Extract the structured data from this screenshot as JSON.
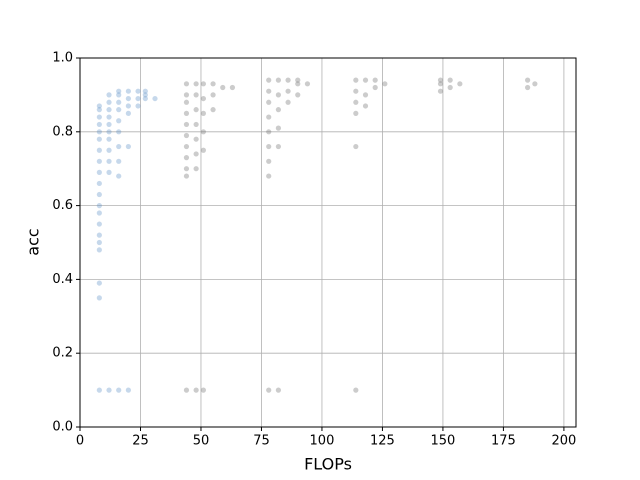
{
  "chart_data": {
    "type": "scatter",
    "xlabel": "FLOPs",
    "ylabel": "acc",
    "xlim": [
      0,
      205
    ],
    "ylim": [
      0,
      1
    ],
    "xticks": [
      0,
      25,
      50,
      75,
      100,
      125,
      150,
      175,
      200
    ],
    "yticks": [
      {
        "value": 0,
        "label": "0.0"
      },
      0.2,
      0.4,
      0.6,
      0.8,
      {
        "value": 1,
        "label": "1.0"
      }
    ],
    "grid": true,
    "alpha": 0.35,
    "series": [
      {
        "color": "#5b8fc7",
        "x": [
          8,
          8,
          8,
          8,
          8,
          8,
          8,
          8,
          8,
          8,
          8,
          8,
          8,
          8,
          8,
          8,
          8,
          8,
          8,
          8,
          12,
          12,
          12,
          12,
          12,
          12,
          12,
          12,
          12,
          12,
          12,
          16,
          16,
          16,
          16,
          16,
          16,
          16,
          16,
          16,
          16,
          20,
          20,
          20,
          20,
          20,
          20,
          24,
          24,
          24,
          27,
          27,
          27,
          31
        ],
        "y": [
          0.1,
          0.35,
          0.39,
          0.48,
          0.5,
          0.52,
          0.55,
          0.58,
          0.6,
          0.63,
          0.66,
          0.69,
          0.72,
          0.75,
          0.78,
          0.8,
          0.82,
          0.84,
          0.86,
          0.87,
          0.1,
          0.69,
          0.72,
          0.75,
          0.78,
          0.8,
          0.82,
          0.84,
          0.86,
          0.88,
          0.9,
          0.1,
          0.68,
          0.72,
          0.76,
          0.8,
          0.83,
          0.86,
          0.88,
          0.9,
          0.91,
          0.1,
          0.76,
          0.85,
          0.87,
          0.89,
          0.91,
          0.87,
          0.89,
          0.91,
          0.89,
          0.9,
          0.91,
          0.89
        ]
      },
      {
        "color": "#6e6e6e",
        "x": [
          44,
          44,
          44,
          44,
          44,
          44,
          44,
          44,
          44,
          44,
          44,
          48,
          48,
          48,
          48,
          48,
          48,
          48,
          48,
          51,
          51,
          51,
          51,
          51,
          51,
          55,
          55,
          55,
          59,
          63,
          78,
          78,
          78,
          78,
          78,
          78,
          78,
          78,
          78,
          82,
          82,
          82,
          82,
          82,
          82,
          86,
          86,
          86,
          90,
          90,
          90,
          94,
          114,
          114,
          114,
          114,
          114,
          114,
          118,
          118,
          118,
          122,
          122,
          126,
          149,
          149,
          149,
          153,
          153,
          157,
          185,
          185,
          188
        ],
        "y": [
          0.1,
          0.68,
          0.7,
          0.73,
          0.76,
          0.79,
          0.82,
          0.85,
          0.88,
          0.9,
          0.93,
          0.1,
          0.7,
          0.74,
          0.78,
          0.82,
          0.86,
          0.9,
          0.93,
          0.1,
          0.75,
          0.8,
          0.85,
          0.89,
          0.93,
          0.86,
          0.9,
          0.93,
          0.92,
          0.92,
          0.1,
          0.68,
          0.72,
          0.76,
          0.8,
          0.84,
          0.88,
          0.91,
          0.94,
          0.1,
          0.76,
          0.81,
          0.86,
          0.9,
          0.94,
          0.88,
          0.91,
          0.94,
          0.9,
          0.93,
          0.94,
          0.93,
          0.1,
          0.76,
          0.85,
          0.88,
          0.91,
          0.94,
          0.87,
          0.9,
          0.94,
          0.92,
          0.94,
          0.93,
          0.91,
          0.93,
          0.94,
          0.92,
          0.94,
          0.93,
          0.92,
          0.94,
          0.93
        ]
      }
    ]
  }
}
